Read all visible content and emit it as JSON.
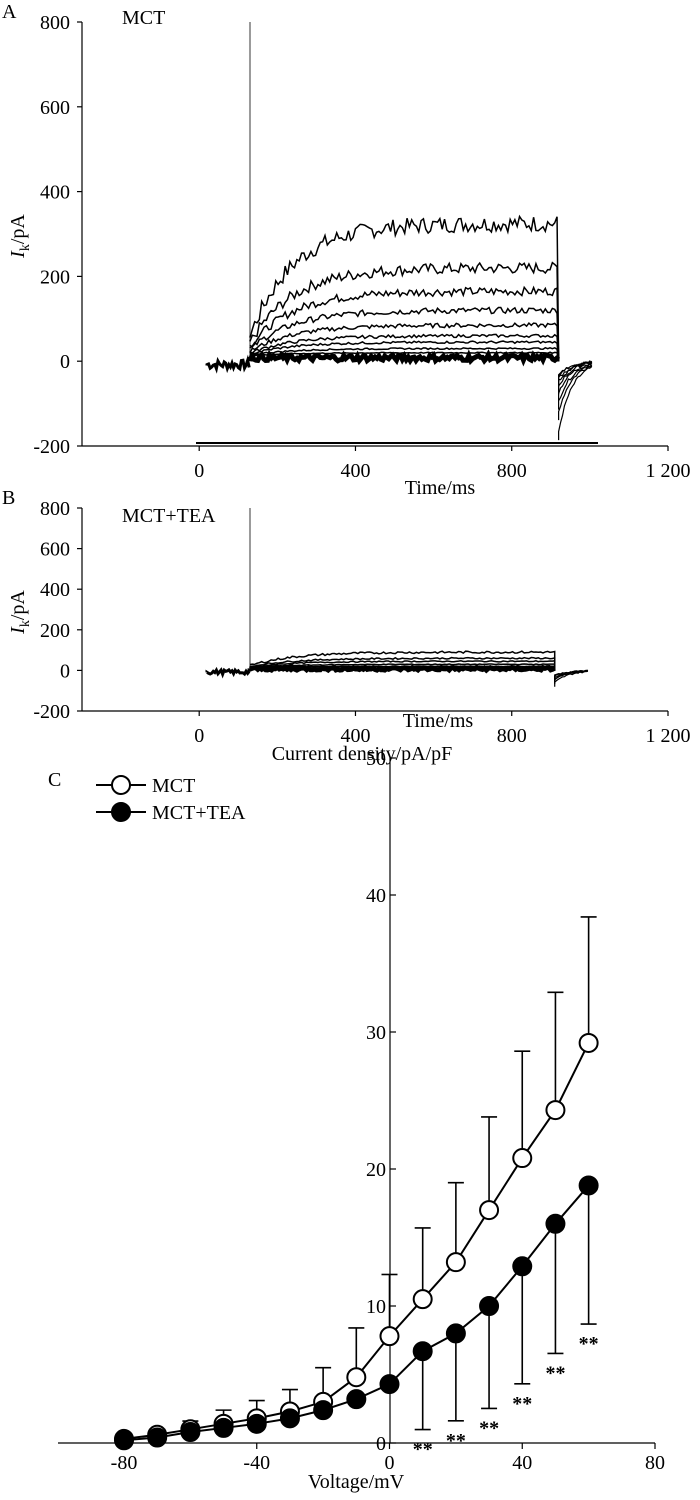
{
  "chart_data": [
    {
      "type": "line",
      "panel": "A",
      "condition": "MCT",
      "ylabel_main": "I",
      "ylabel_sub": "k",
      "ylabel_unit": "/pA",
      "xlabel": "Time/ms",
      "xlim": [
        -300,
        1200
      ],
      "ylim": [
        -200,
        800
      ],
      "xticks": [
        0,
        400,
        800,
        1200
      ],
      "xtick_labels": [
        "0",
        "400",
        "800",
        "1 200"
      ],
      "yticks": [
        -200,
        0,
        200,
        400,
        600,
        800
      ],
      "ytick_labels": [
        "-200",
        "0",
        "200",
        "400",
        "600",
        "800"
      ],
      "series": [
        {
          "name": "trace 1",
          "steady": 325
        },
        {
          "name": "trace 2",
          "steady": 220
        },
        {
          "name": "trace 3",
          "steady": 165
        },
        {
          "name": "trace 4",
          "steady": 120
        },
        {
          "name": "trace 5",
          "steady": 85
        },
        {
          "name": "trace 6",
          "steady": 60
        },
        {
          "name": "trace 7",
          "steady": 45
        },
        {
          "name": "trace 8",
          "steady": 30
        },
        {
          "name": "trace 9",
          "steady": 20
        }
      ],
      "capacitive_spike_ms": 130,
      "step_on_ms": 130,
      "step_off_ms": 920
    },
    {
      "type": "line",
      "panel": "B",
      "condition": "MCT+TEA",
      "ylabel_main": "I",
      "ylabel_sub": "k",
      "ylabel_unit": "/pA",
      "xlabel": "Time/ms",
      "xlim": [
        -300,
        1200
      ],
      "ylim": [
        -200,
        800
      ],
      "xticks": [
        0,
        400,
        800,
        1200
      ],
      "xtick_labels": [
        "0",
        "400",
        "800",
        "1 200"
      ],
      "yticks": [
        -200,
        0,
        200,
        400,
        600,
        800
      ],
      "ytick_labels": [
        "-200",
        "0",
        "200",
        "400",
        "600",
        "800"
      ],
      "series": [
        {
          "name": "trace 1",
          "steady": 90
        },
        {
          "name": "trace 2",
          "steady": 60
        },
        {
          "name": "trace 3",
          "steady": 45
        },
        {
          "name": "trace 4",
          "steady": 30
        },
        {
          "name": "trace 5",
          "steady": 20
        },
        {
          "name": "trace 6",
          "steady": 12
        }
      ],
      "capacitive_spike_ms": 130,
      "step_on_ms": 130,
      "step_off_ms": 910
    },
    {
      "type": "line",
      "panel": "C",
      "title": "Current density/pA/pF",
      "xlabel": "Voltage/mV",
      "ylabel": "",
      "xlim": [
        -100,
        80
      ],
      "ylim": [
        0,
        50
      ],
      "xticks": [
        -80,
        -40,
        0,
        40,
        80
      ],
      "xtick_labels": [
        "-80",
        "-40",
        "0",
        "40",
        "80"
      ],
      "yticks": [
        0,
        10,
        20,
        30,
        40,
        50
      ],
      "ytick_labels": [
        "0",
        "10",
        "20",
        "30",
        "40",
        "50"
      ],
      "x": [
        -80,
        -70,
        -60,
        -50,
        -40,
        -30,
        -20,
        -10,
        0,
        10,
        20,
        30,
        40,
        50,
        60
      ],
      "series": [
        {
          "name": "MCT",
          "marker": "open-circle",
          "values": [
            0.3,
            0.6,
            1.0,
            1.4,
            1.8,
            2.3,
            3.0,
            4.8,
            7.8,
            10.5,
            13.2,
            17.0,
            20.8,
            24.3,
            29.2
          ],
          "errors": [
            0.3,
            0.4,
            0.6,
            1.0,
            1.3,
            1.6,
            2.5,
            3.6,
            4.5,
            5.2,
            5.8,
            6.8,
            7.8,
            8.6,
            9.2
          ]
        },
        {
          "name": "MCT+TEA",
          "marker": "filled-circle",
          "values": [
            0.2,
            0.4,
            0.8,
            1.1,
            1.4,
            1.8,
            2.4,
            3.2,
            4.3,
            6.7,
            8.0,
            10.0,
            12.9,
            16.0,
            18.8
          ],
          "errors": [
            0,
            0,
            0,
            0,
            0,
            0,
            0,
            0,
            0,
            0,
            0,
            0,
            0,
            0,
            0
          ]
        }
      ],
      "significance": {
        "label": "**",
        "x": [
          10,
          20,
          30,
          40,
          50,
          60
        ]
      },
      "legend": "top-left"
    }
  ]
}
